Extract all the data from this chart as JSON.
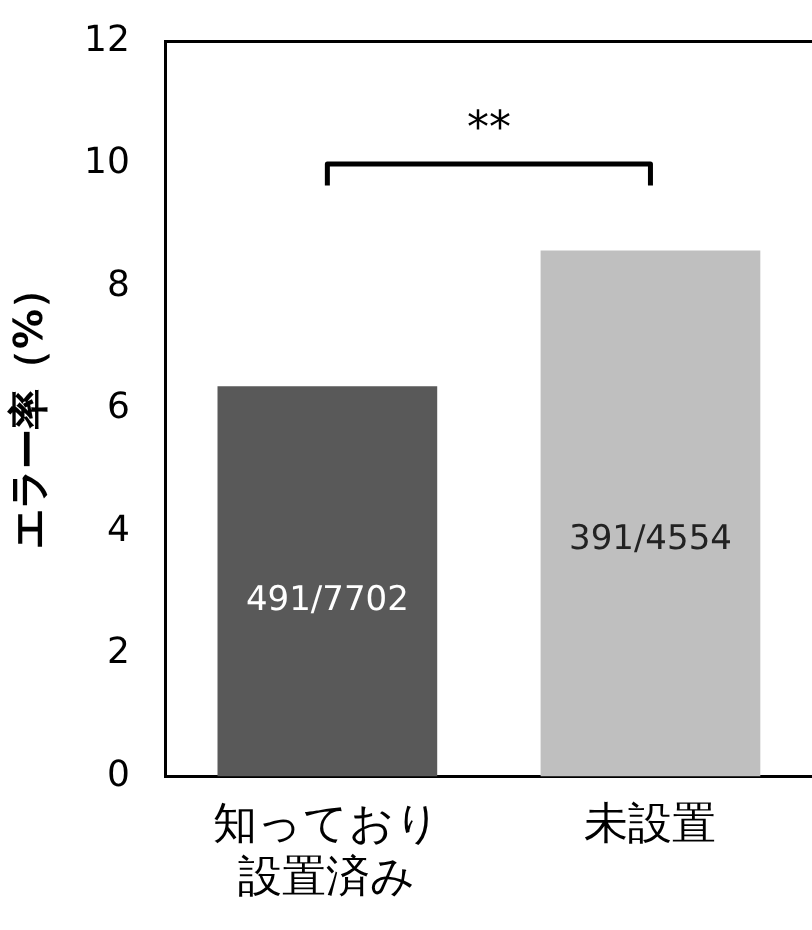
{
  "chart_data": {
    "type": "bar",
    "ylabel": "エラー率（%）",
    "categories": [
      "知っており設置済み",
      "未設置"
    ],
    "values": [
      6.37,
      8.59
    ],
    "colors": [
      "#595959",
      "#bfbfbf"
    ],
    "value_labels": [
      "491/7702",
      "391/4554"
    ],
    "ylim": [
      0,
      12
    ],
    "yticks": [
      0,
      2,
      4,
      6,
      8,
      10,
      12
    ],
    "grid": false,
    "legend": false,
    "annotations": [
      "**"
    ]
  }
}
